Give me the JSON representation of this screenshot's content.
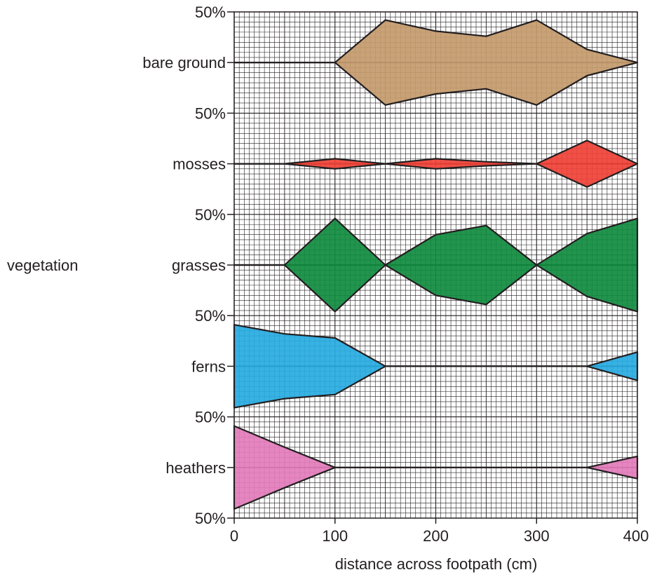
{
  "chart_data": {
    "type": "kite",
    "xlabel": "distance across footpath (cm)",
    "ylabel": "vegetation",
    "xlim": [
      0,
      400
    ],
    "x": [
      0,
      50,
      100,
      150,
      200,
      250,
      300,
      350,
      400
    ],
    "xticks": [
      0,
      100,
      200,
      300,
      400
    ],
    "scale_label": "50%",
    "grid": true,
    "series": [
      {
        "name": "bare ground",
        "color": "#c49a6c",
        "values": [
          0,
          0,
          0,
          84,
          62,
          52,
          84,
          26,
          0
        ]
      },
      {
        "name": "mosses",
        "color": "#ef4136",
        "values": [
          0,
          0,
          10,
          0,
          10,
          4,
          0,
          46,
          0
        ]
      },
      {
        "name": "grasses",
        "color": "#108b3f",
        "values": [
          0,
          0,
          92,
          0,
          60,
          78,
          0,
          62,
          92
        ]
      },
      {
        "name": "ferns",
        "color": "#27aae1",
        "values": [
          82,
          64,
          56,
          0,
          0,
          0,
          0,
          0,
          28
        ]
      },
      {
        "name": "heathers",
        "color": "#e37cbb",
        "values": [
          82,
          40,
          0,
          0,
          0,
          0,
          0,
          0,
          22
        ]
      }
    ]
  }
}
